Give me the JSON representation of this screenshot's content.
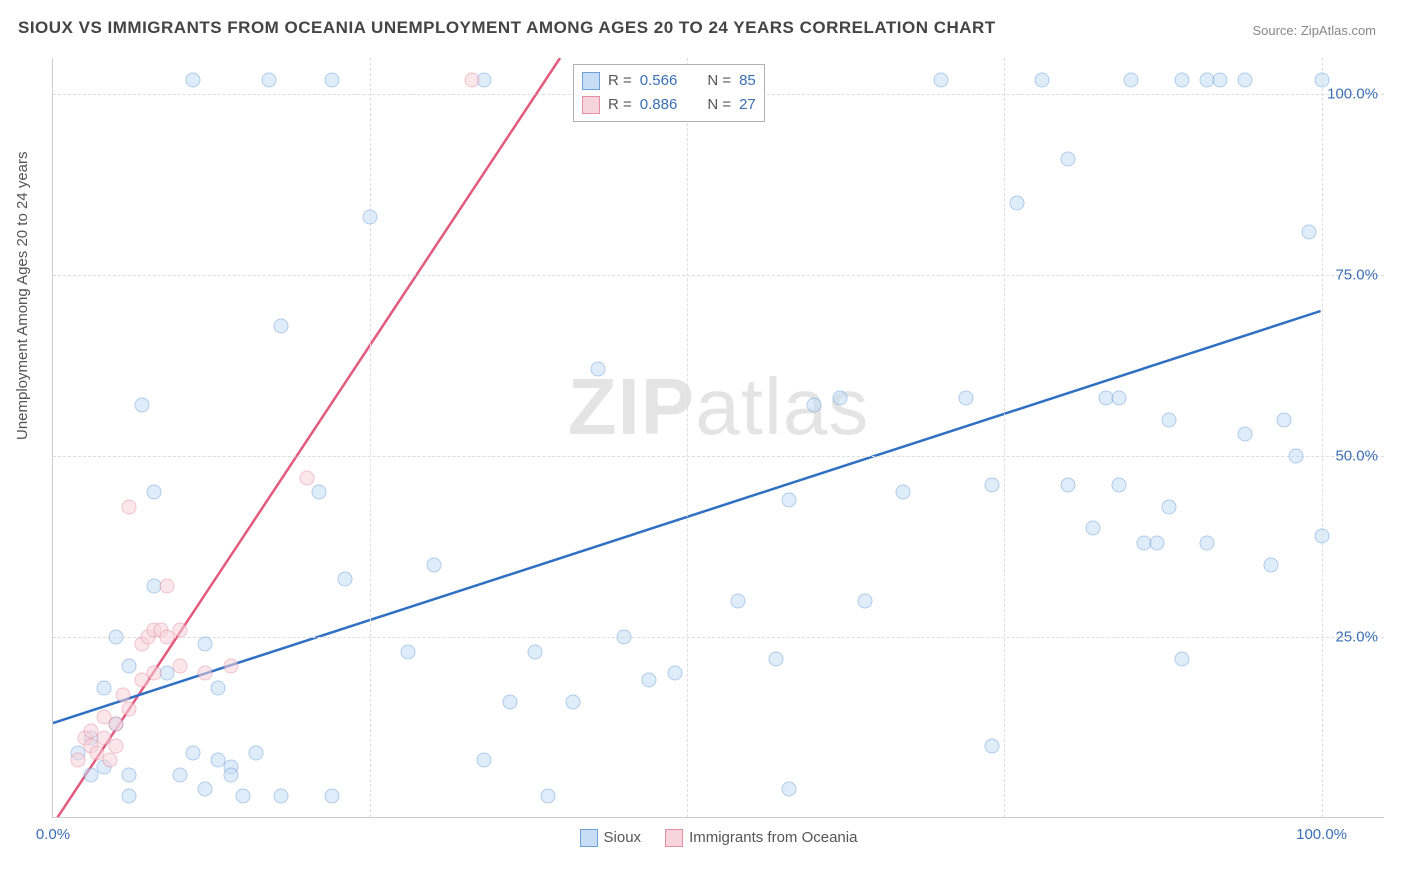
{
  "header": {
    "title": "SIOUX VS IMMIGRANTS FROM OCEANIA UNEMPLOYMENT AMONG AGES 20 TO 24 YEARS CORRELATION CHART",
    "source": "Source: ZipAtlas.com"
  },
  "chart": {
    "type": "scatter",
    "ylabel": "Unemployment Among Ages 20 to 24 years",
    "xlim": [
      0,
      105
    ],
    "ylim": [
      0,
      105
    ],
    "xtick_labels": {
      "0": "0.0%",
      "100": "100.0%"
    },
    "ytick_labels": {
      "25": "25.0%",
      "50": "50.0%",
      "75": "75.0%",
      "100": "100.0%"
    },
    "grid_positions_pct": [
      25,
      50,
      75,
      100
    ],
    "vgrid_positions_pct": [
      25,
      50,
      75,
      100
    ],
    "background_color": "#ffffff",
    "grid_color": "#dddddd",
    "axis_color": "#cccccc",
    "series": {
      "sioux": {
        "label": "Sioux",
        "marker_fill": "#c6ddf5",
        "marker_stroke": "#6fa1d8",
        "line_color": "#2f6fc4",
        "line_width": 2.5,
        "R": "0.566",
        "N": "85",
        "trend": {
          "x1": 0,
          "y1": 13,
          "x2": 100,
          "y2": 70
        },
        "points": [
          [
            2,
            9
          ],
          [
            3,
            11
          ],
          [
            4,
            7
          ],
          [
            5,
            13
          ],
          [
            3,
            6
          ],
          [
            6,
            21
          ],
          [
            4,
            18
          ],
          [
            8,
            32
          ],
          [
            5,
            25
          ],
          [
            7,
            57
          ],
          [
            11,
            102
          ],
          [
            8,
            45
          ],
          [
            9,
            20
          ],
          [
            12,
            24
          ],
          [
            14,
            7
          ],
          [
            13,
            18
          ],
          [
            15,
            3
          ],
          [
            16,
            9
          ],
          [
            17,
            102
          ],
          [
            18,
            68
          ],
          [
            21,
            45
          ],
          [
            22,
            102
          ],
          [
            23,
            33
          ],
          [
            25,
            83
          ],
          [
            28,
            23
          ],
          [
            30,
            35
          ],
          [
            34,
            102
          ],
          [
            36,
            16
          ],
          [
            38,
            23
          ],
          [
            41,
            16
          ],
          [
            43,
            62
          ],
          [
            45,
            25
          ],
          [
            47,
            19
          ],
          [
            49,
            20
          ],
          [
            50,
            102
          ],
          [
            52,
            102
          ],
          [
            54,
            30
          ],
          [
            57,
            22
          ],
          [
            58,
            44
          ],
          [
            60,
            57
          ],
          [
            62,
            58
          ],
          [
            64,
            30
          ],
          [
            67,
            45
          ],
          [
            70,
            102
          ],
          [
            72,
            58
          ],
          [
            74,
            46
          ],
          [
            76,
            85
          ],
          [
            78,
            102
          ],
          [
            80,
            91
          ],
          [
            80,
            46
          ],
          [
            82,
            40
          ],
          [
            83,
            58
          ],
          [
            84,
            58
          ],
          [
            84,
            46
          ],
          [
            85,
            102
          ],
          [
            86,
            38
          ],
          [
            87,
            38
          ],
          [
            88,
            43
          ],
          [
            88,
            55
          ],
          [
            89,
            102
          ],
          [
            89,
            22
          ],
          [
            91,
            38
          ],
          [
            91,
            102
          ],
          [
            92,
            102
          ],
          [
            94,
            102
          ],
          [
            94,
            53
          ],
          [
            96,
            35
          ],
          [
            97,
            55
          ],
          [
            98,
            50
          ],
          [
            99,
            81
          ],
          [
            100,
            102
          ],
          [
            100,
            39
          ],
          [
            10,
            6
          ],
          [
            11,
            9
          ],
          [
            13,
            8
          ],
          [
            58,
            4
          ],
          [
            6,
            3
          ],
          [
            6,
            6
          ],
          [
            12,
            4
          ],
          [
            14,
            6
          ],
          [
            34,
            8
          ],
          [
            39,
            3
          ],
          [
            22,
            3
          ],
          [
            18,
            3
          ],
          [
            74,
            10
          ]
        ]
      },
      "oceania": {
        "label": "Immigrants from Oceania",
        "marker_fill": "#f8d4dc",
        "marker_stroke": "#e58ea3",
        "line_color": "#e35a7e",
        "line_width": 2.5,
        "R": "0.886",
        "N": "27",
        "trend": {
          "x1": 0,
          "y1": -1,
          "x2": 40,
          "y2": 105
        },
        "points": [
          [
            2,
            8
          ],
          [
            2.5,
            11
          ],
          [
            3,
            10
          ],
          [
            3,
            12
          ],
          [
            3.5,
            9
          ],
          [
            4,
            14
          ],
          [
            4,
            11
          ],
          [
            4.5,
            8
          ],
          [
            5,
            10
          ],
          [
            5,
            13
          ],
          [
            5.5,
            17
          ],
          [
            6,
            15
          ],
          [
            6,
            43
          ],
          [
            7,
            19
          ],
          [
            7,
            24
          ],
          [
            7.5,
            25
          ],
          [
            8,
            26
          ],
          [
            8,
            20
          ],
          [
            8.5,
            26
          ],
          [
            9,
            25
          ],
          [
            9,
            32
          ],
          [
            10,
            21
          ],
          [
            10,
            26
          ],
          [
            12,
            20
          ],
          [
            14,
            21
          ],
          [
            20,
            47
          ],
          [
            33,
            102
          ]
        ]
      }
    },
    "legend_top": {
      "r_label": "R =",
      "n_label": "N ="
    },
    "watermark": {
      "bold": "ZIP",
      "rest": "atlas"
    }
  }
}
